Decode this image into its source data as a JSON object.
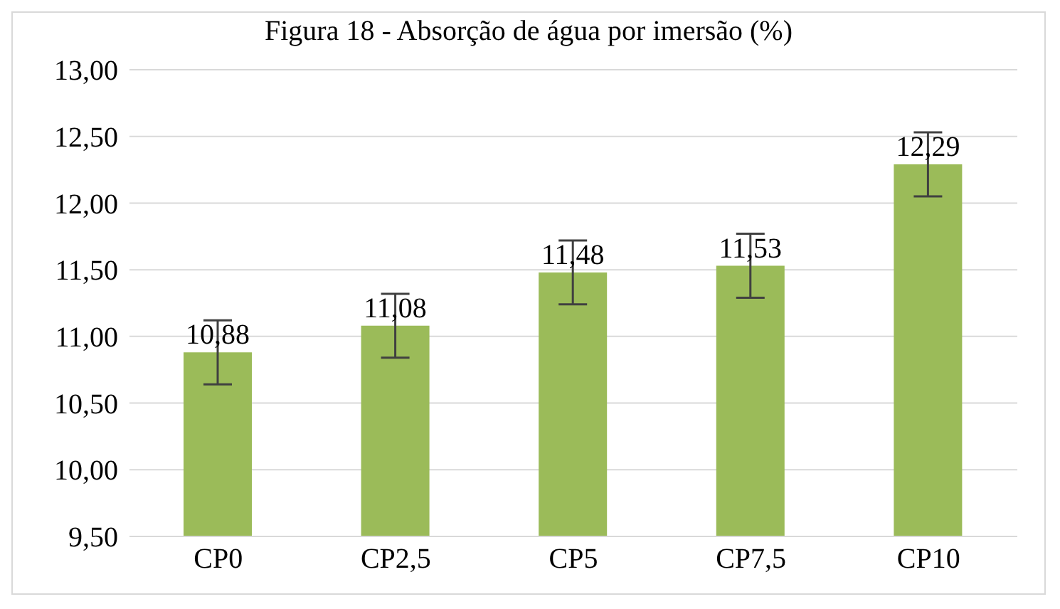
{
  "chart_data": {
    "type": "bar",
    "title": "Figura 18 - Absorção de água por imersão (%)",
    "categories": [
      "CP0",
      "CP2,5",
      "CP5",
      "CP7,5",
      "CP10"
    ],
    "values": [
      10.88,
      11.08,
      11.48,
      11.53,
      12.29
    ],
    "errors": [
      0.24,
      0.24,
      0.24,
      0.24,
      0.24
    ],
    "value_labels": [
      "10,88",
      "11,08",
      "11,48",
      "11,53",
      "12,29"
    ],
    "color": "#9bbb59",
    "ylim": [
      9.5,
      13
    ],
    "yticks": [
      {
        "value": 9.5,
        "label": "9,50"
      },
      {
        "value": 10,
        "label": "10,00"
      },
      {
        "value": 10.5,
        "label": "10,50"
      },
      {
        "value": 11,
        "label": "11,00"
      },
      {
        "value": 11.5,
        "label": "11,50"
      },
      {
        "value": 12,
        "label": "12,00"
      },
      {
        "value": 12.5,
        "label": "12,50"
      },
      {
        "value": 13,
        "label": "13,00"
      }
    ],
    "grid": "y"
  }
}
